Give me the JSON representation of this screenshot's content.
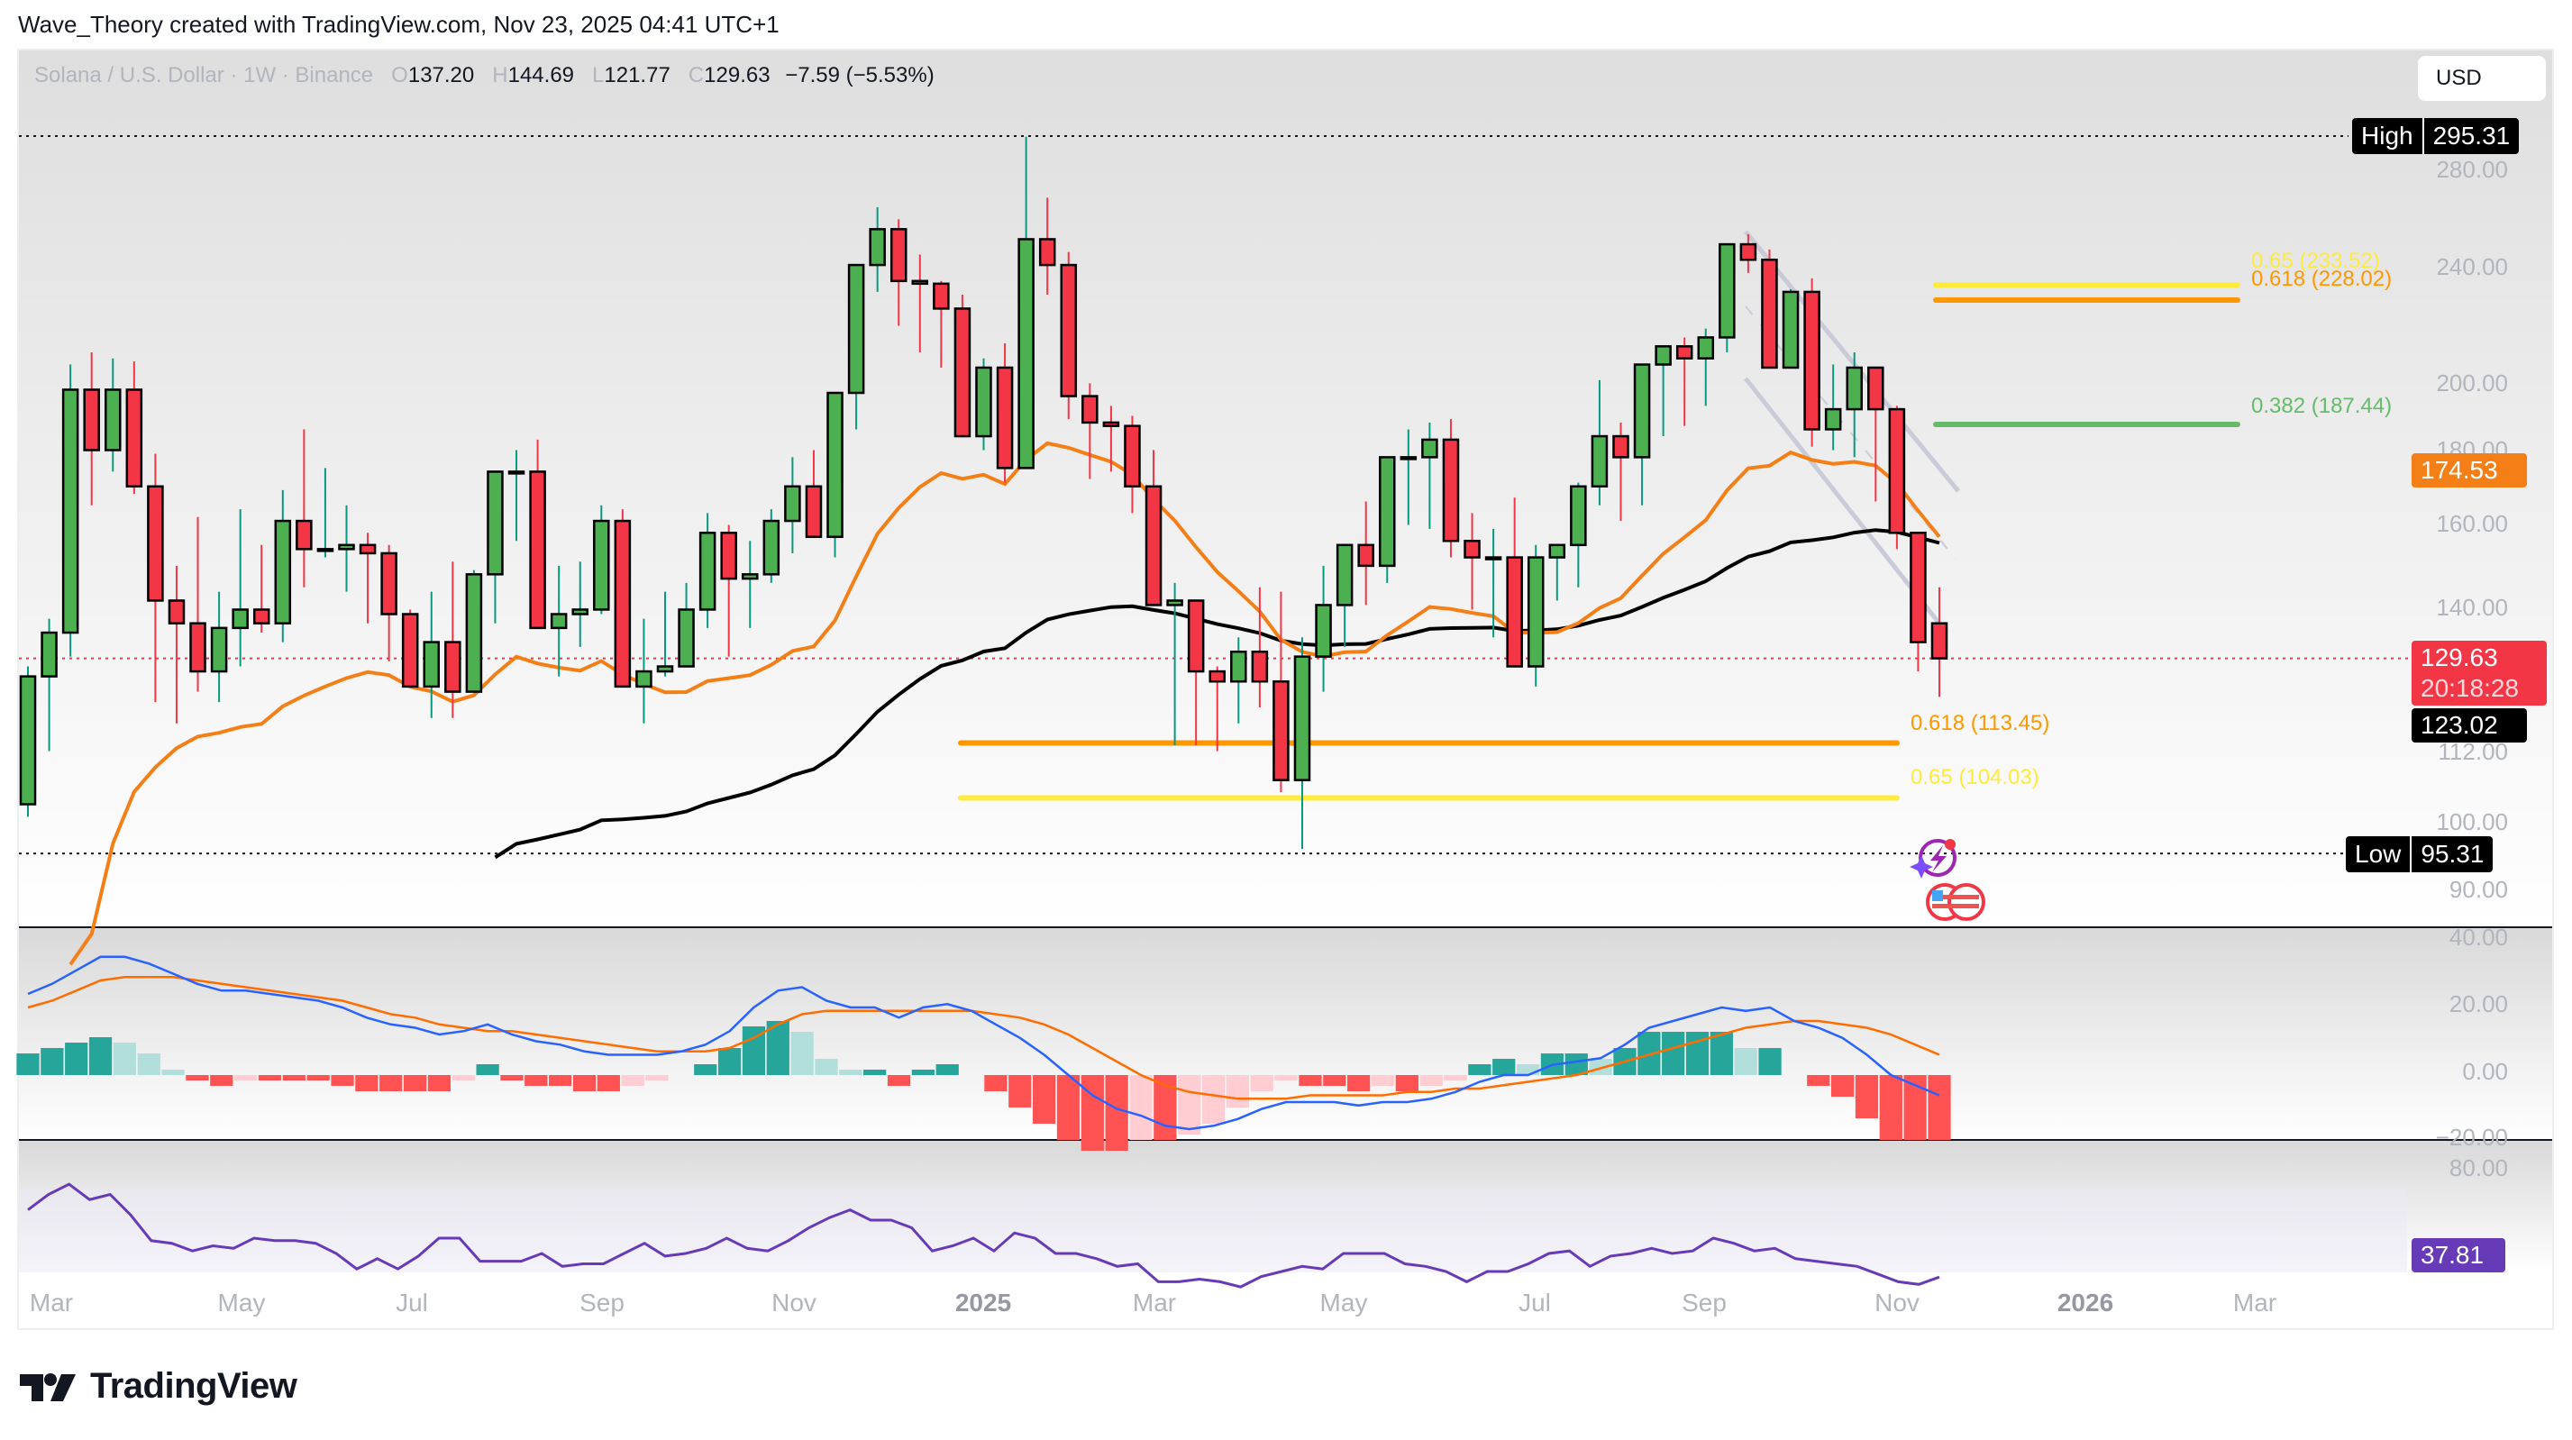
{
  "credit": "Wave_Theory created with TradingView.com, Nov 23, 2025 04:41 UTC+1",
  "legend": {
    "symbol": "Solana / U.S. Dollar · 1W · Binance",
    "o_label": "O",
    "o": "137.20",
    "h_label": "H",
    "h": "144.69",
    "l_label": "L",
    "l": "121.77",
    "c_label": "C",
    "c": "129.63",
    "change": "−7.59 (−5.53%)"
  },
  "currency_button": "USD",
  "price_axis": {
    "ticks": [
      "280.00",
      "240.00",
      "200.00",
      "180.00",
      "160.00",
      "140.00",
      "112.00",
      "100.00",
      "90.00"
    ],
    "high_label": "High",
    "high_value": "295.31",
    "low_label": "Low",
    "low_value": "95.31",
    "ema_orange_value": "174.53",
    "last_price": "129.63",
    "countdown": "20:18:28",
    "ema_black_value": "123.02"
  },
  "macd_axis": {
    "ticks": [
      "40.00",
      "20.00",
      "0.00",
      "−20.00"
    ]
  },
  "rsi_axis": {
    "ticks": [
      "80.00"
    ],
    "value": "37.81"
  },
  "time_axis": [
    "Mar",
    "May",
    "Jul",
    "Sep",
    "Nov",
    "2025",
    "Mar",
    "May",
    "Jul",
    "Sep",
    "Nov",
    "2026",
    "Mar"
  ],
  "fib_levels": [
    {
      "label": "0.65 (233.52)",
      "color": "#ffeb3b"
    },
    {
      "label": "0.618 (228.02)",
      "color": "#ff9800"
    },
    {
      "label": "0.382 (187.44)",
      "color": "#66bb6a"
    },
    {
      "label": "0.618 (113.45)",
      "color": "#ff9800"
    },
    {
      "label": "0.65 (104.03)",
      "color": "#ffeb3b"
    }
  ],
  "logo_text": "TradingView",
  "colors": {
    "up": "#4caf50",
    "down": "#f23645",
    "ema50": "#f57f17",
    "ema200": "#000000",
    "macd": "#2962ff",
    "signal": "#ff6d00",
    "rsi": "#673ab7",
    "hist_up_strong": "#26a69a",
    "hist_up_weak": "#b2dfdb",
    "hist_down_strong": "#ff5252",
    "hist_down_weak": "#ffcdd2"
  },
  "chart_data": {
    "type": "candlestick",
    "title": "Solana / U.S. Dollar · 1W · Binance",
    "xlabel": "",
    "ylabel": "USD",
    "scale": "log",
    "ylim": [
      88,
      300
    ],
    "x_ticks": [
      "Mar",
      "May",
      "Jul",
      "Sep",
      "Nov",
      "2025",
      "Mar",
      "May",
      "Jul",
      "Sep",
      "Nov",
      "2026",
      "Mar"
    ],
    "ohlc": [
      [
        103,
        128,
        101,
        126
      ],
      [
        126,
        138,
        112,
        135
      ],
      [
        135,
        206,
        130,
        198
      ],
      [
        198,
        210,
        165,
        180
      ],
      [
        180,
        208,
        174,
        198
      ],
      [
        198,
        207,
        168,
        170
      ],
      [
        170,
        179,
        121,
        142
      ],
      [
        142,
        150,
        117,
        137
      ],
      [
        137,
        162,
        123,
        127
      ],
      [
        127,
        144,
        121,
        136
      ],
      [
        136,
        164,
        128,
        140
      ],
      [
        140,
        155,
        135,
        137
      ],
      [
        137,
        169,
        133,
        161
      ],
      [
        161,
        186,
        145,
        154
      ],
      [
        154,
        175,
        152,
        154
      ],
      [
        154,
        165,
        144,
        155
      ],
      [
        155,
        158,
        137,
        153
      ],
      [
        153,
        155,
        129,
        139
      ],
      [
        139,
        140,
        125,
        124
      ],
      [
        124,
        144,
        118,
        133
      ],
      [
        133,
        151,
        118,
        123
      ],
      [
        123,
        149,
        129,
        148
      ],
      [
        148,
        173,
        137,
        174
      ],
      [
        174,
        180,
        156,
        174
      ],
      [
        174,
        183,
        137,
        136
      ],
      [
        136,
        150,
        126,
        139
      ],
      [
        139,
        151,
        132,
        140
      ],
      [
        140,
        165,
        139,
        161
      ],
      [
        161,
        164,
        124,
        124
      ],
      [
        124,
        138,
        117,
        127
      ],
      [
        127,
        144,
        126,
        128
      ],
      [
        128,
        146,
        130,
        140
      ],
      [
        140,
        163,
        136,
        158
      ],
      [
        158,
        160,
        130,
        147
      ],
      [
        147,
        156,
        136,
        148
      ],
      [
        148,
        164,
        146,
        161
      ],
      [
        161,
        178,
        153,
        170
      ],
      [
        170,
        180,
        158,
        157
      ],
      [
        157,
        182,
        152,
        197
      ],
      [
        197,
        212,
        186,
        241
      ],
      [
        241,
        264,
        231,
        255
      ],
      [
        255,
        259,
        219,
        235
      ],
      [
        235,
        245,
        210,
        234
      ],
      [
        234,
        235,
        205,
        225
      ],
      [
        225,
        230,
        195,
        184
      ],
      [
        184,
        208,
        180,
        205
      ],
      [
        205,
        213,
        171,
        175
      ],
      [
        175,
        295,
        181,
        251
      ],
      [
        251,
        268,
        230,
        241
      ],
      [
        241,
        246,
        189,
        196
      ],
      [
        196,
        200,
        172,
        188
      ],
      [
        188,
        193,
        174,
        187
      ],
      [
        187,
        190,
        163,
        170
      ],
      [
        170,
        180,
        150,
        141
      ],
      [
        141,
        146,
        113,
        142
      ],
      [
        142,
        142,
        113,
        127
      ],
      [
        127,
        128,
        112,
        125
      ],
      [
        125,
        134,
        117,
        131
      ],
      [
        131,
        145,
        120,
        125
      ],
      [
        125,
        144,
        105,
        107
      ],
      [
        107,
        134,
        96,
        130
      ],
      [
        130,
        150,
        123,
        141
      ],
      [
        141,
        155,
        132,
        155
      ],
      [
        155,
        166,
        141,
        150
      ],
      [
        150,
        178,
        146,
        178
      ],
      [
        178,
        186,
        160,
        178
      ],
      [
        178,
        188,
        159,
        183
      ],
      [
        183,
        189,
        152,
        156
      ],
      [
        156,
        163,
        140,
        152
      ],
      [
        152,
        159,
        134,
        152
      ],
      [
        152,
        167,
        136,
        128
      ],
      [
        128,
        155,
        124,
        152
      ],
      [
        152,
        154,
        142,
        155
      ],
      [
        155,
        171,
        145,
        170
      ],
      [
        170,
        201,
        165,
        184
      ],
      [
        184,
        188,
        161,
        178
      ],
      [
        178,
        205,
        165,
        206
      ],
      [
        206,
        211,
        184,
        212
      ],
      [
        212,
        215,
        187,
        208
      ],
      [
        208,
        218,
        193,
        215
      ],
      [
        215,
        248,
        210,
        249
      ],
      [
        249,
        253,
        238,
        243
      ],
      [
        243,
        247,
        207,
        205
      ],
      [
        205,
        232,
        210,
        231
      ],
      [
        231,
        236,
        181,
        186
      ],
      [
        186,
        206,
        180,
        192
      ],
      [
        192,
        210,
        178,
        205
      ],
      [
        205,
        205,
        166,
        192
      ],
      [
        192,
        193,
        154,
        158
      ],
      [
        158,
        147,
        127,
        133
      ],
      [
        137,
        145,
        122,
        129.63
      ]
    ],
    "ema50_label_value": 174.53,
    "ema200_label_value": 123.02,
    "horizontal_lines": {
      "high": 295.31,
      "low": 95.31,
      "last": 129.63
    },
    "fib_retracements": [
      {
        "ratio": 0.65,
        "price": 233.52
      },
      {
        "ratio": 0.618,
        "price": 228.02
      },
      {
        "ratio": 0.382,
        "price": 187.44
      },
      {
        "ratio": 0.618,
        "price": 113.45
      },
      {
        "ratio": 0.65,
        "price": 104.03
      }
    ],
    "macd": {
      "ylim": [
        -20,
        40
      ],
      "macd_line": [
        24,
        27,
        31,
        35,
        35,
        33,
        30,
        27,
        25,
        25,
        24,
        23,
        22,
        20,
        17,
        15,
        14,
        12,
        13,
        15,
        12,
        10,
        9,
        7,
        6,
        6,
        6,
        7,
        9,
        13,
        20,
        25,
        26,
        22,
        20,
        20,
        17,
        20,
        21,
        19,
        15,
        11,
        6,
        0,
        -6,
        -10,
        -12,
        -15,
        -16,
        -15,
        -13,
        -10,
        -8,
        -8,
        -8,
        -9,
        -8,
        -8,
        -7,
        -5,
        -2,
        0,
        0,
        3,
        4,
        5,
        9,
        14,
        16,
        18,
        20,
        19,
        20,
        16,
        14,
        11,
        6,
        0,
        -3,
        -6
      ],
      "signal_line": [
        20,
        22,
        25,
        28,
        29,
        29,
        29,
        28,
        27,
        26,
        25,
        24,
        23,
        22,
        20,
        18,
        17,
        15,
        14,
        13,
        13,
        12,
        11,
        10,
        9,
        8,
        7,
        7,
        7,
        8,
        11,
        15,
        18,
        19,
        19,
        19,
        19,
        19,
        19,
        19,
        18,
        17,
        15,
        12,
        8,
        4,
        0,
        -3,
        -5,
        -6,
        -7,
        -7,
        -7,
        -6,
        -6,
        -6,
        -6,
        -5,
        -5,
        -4,
        -4,
        -3,
        -2,
        -1,
        0,
        2,
        4,
        6,
        8,
        10,
        12,
        14,
        15,
        16,
        16,
        15,
        14,
        12,
        9,
        6
      ]
    },
    "rsi": {
      "value": 37.81,
      "series": [
        64,
        70,
        74,
        68,
        70,
        62,
        52,
        51,
        48,
        50,
        49,
        53,
        52,
        52,
        51,
        47,
        41,
        45,
        41,
        46,
        53,
        53,
        44,
        44,
        44,
        47,
        42,
        43,
        43,
        47,
        51,
        46,
        47,
        49,
        53,
        49,
        48,
        52,
        57,
        61,
        64,
        60,
        60,
        57,
        48,
        50,
        53,
        48,
        55,
        53,
        47,
        47,
        45,
        42,
        43,
        36,
        36,
        37,
        36,
        34,
        38,
        40,
        42,
        41,
        47,
        47,
        47,
        43,
        42,
        40,
        36,
        40,
        40,
        43,
        47,
        48,
        42,
        46,
        47,
        49,
        47,
        48,
        53,
        51,
        48,
        49,
        45,
        44,
        43,
        42,
        39,
        36,
        35,
        37.81
      ],
      "band": [
        30,
        70
      ]
    }
  }
}
